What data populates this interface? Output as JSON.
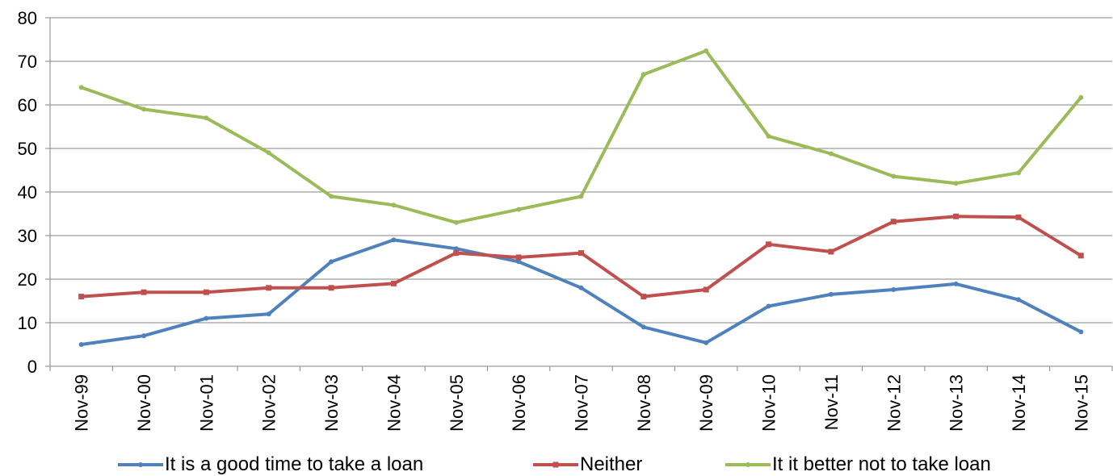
{
  "chart_data": {
    "type": "line",
    "title": "",
    "categories": [
      "Nov-99",
      "Nov-00",
      "Nov-01",
      "Nov-02",
      "Nov-03",
      "Nov-04",
      "Nov-05",
      "Nov-06",
      "Nov-07",
      "Nov-08",
      "Nov-09",
      "Nov-10",
      "Nov-11",
      "Nov-12",
      "Nov-13",
      "Nov-14",
      "Nov-15"
    ],
    "ylim": [
      0,
      80
    ],
    "yticks": [
      "0",
      "10",
      "20",
      "30",
      "40",
      "50",
      "60",
      "70",
      "80"
    ],
    "grid": true,
    "legend_position": "bottom",
    "series": [
      {
        "name": "It is a good time to take a loan",
        "color": "#4f81bd",
        "values": [
          5,
          7,
          11,
          12,
          24,
          29,
          27,
          24,
          18,
          9,
          5.4,
          13.8,
          16.5,
          17.6,
          18.9,
          15.3,
          7.9
        ]
      },
      {
        "name": "Neither",
        "color": "#c0504d",
        "values": [
          16,
          17,
          17,
          18,
          18,
          19,
          26,
          25,
          26,
          16,
          17.6,
          28,
          26.3,
          33.2,
          34.4,
          34.2,
          25.4
        ]
      },
      {
        "name": "It it better not to take loan",
        "color": "#9bbb59",
        "values": [
          64,
          59,
          57,
          49,
          39,
          37,
          33,
          36,
          39,
          67,
          72.4,
          52.8,
          48.8,
          43.6,
          42,
          44.4,
          61.7
        ]
      }
    ]
  }
}
